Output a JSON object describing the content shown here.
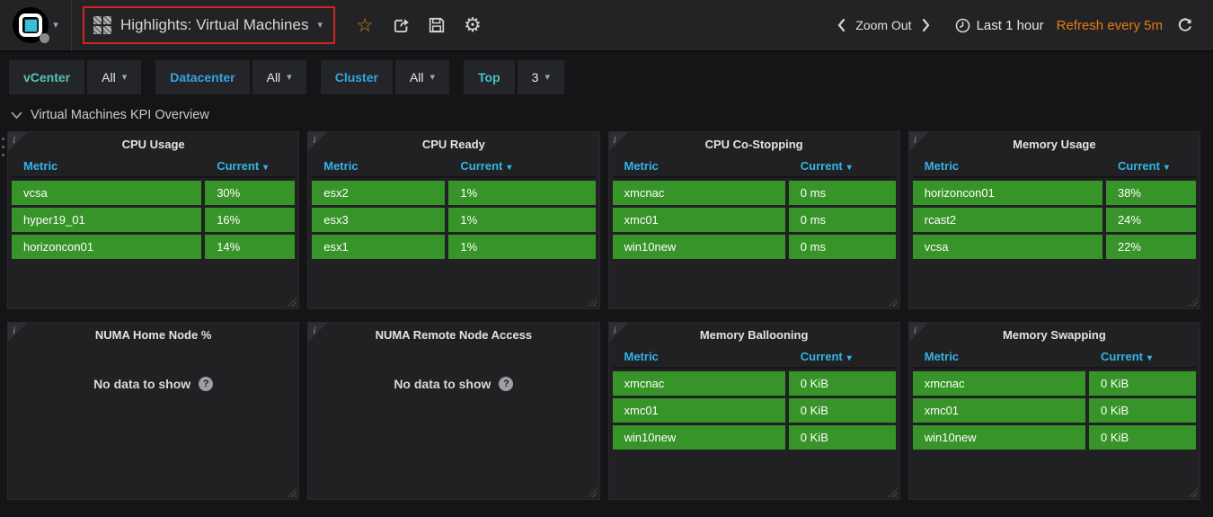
{
  "colors": {
    "page_bg": "#151517",
    "navbar_bg": "#232325",
    "panel_bg": "#212124",
    "box_bg": "#232528",
    "green": "#379428",
    "blue": "#33b5e5",
    "orange": "#e87a16",
    "star_orange": "#d5881c",
    "red": "#cf2522",
    "logo_cyan": "#3bbfd4",
    "text": "#d8d9da"
  },
  "navbar": {
    "title": "Highlights: Virtual Machines",
    "zoom_out_label": "Zoom Out",
    "time_range_label": "Last 1 hour",
    "refresh_label": "Refresh every 5m",
    "action_icons": [
      "star-icon",
      "share-icon",
      "save-icon",
      "settings-gear-icon"
    ]
  },
  "filters": [
    {
      "label": "vCenter",
      "value": "All",
      "label_color": "#54c3b6"
    },
    {
      "label": "Datacenter",
      "value": "All",
      "label_color": "#34a3e2"
    },
    {
      "label": "Cluster",
      "value": "All",
      "label_color": "#34a3e2"
    },
    {
      "label": "Top",
      "value": "3",
      "label_color": "#47c0cb"
    }
  ],
  "section": {
    "title": "Virtual Machines KPI Overview"
  },
  "table_header": {
    "metric": "Metric",
    "current": "Current"
  },
  "no_data_text": "No data to show",
  "panels": [
    {
      "title": "CPU Usage",
      "col_split": 67,
      "rows": [
        [
          "vcsa",
          "30%"
        ],
        [
          "hyper19_01",
          "16%"
        ],
        [
          "horizoncon01",
          "14%"
        ]
      ]
    },
    {
      "title": "CPU Ready",
      "col_split": 47,
      "rows": [
        [
          "esx2",
          "1%"
        ],
        [
          "esx3",
          "1%"
        ],
        [
          "esx1",
          "1%"
        ]
      ]
    },
    {
      "title": "CPU Co-Stopping",
      "col_split": 61,
      "rows": [
        [
          "xmcnac",
          "0 ms"
        ],
        [
          "xmc01",
          "0 ms"
        ],
        [
          "win10new",
          "0 ms"
        ]
      ]
    },
    {
      "title": "Memory Usage",
      "col_split": 67,
      "rows": [
        [
          "horizoncon01",
          "38%"
        ],
        [
          "rcast2",
          "24%"
        ],
        [
          "vcsa",
          "22%"
        ]
      ]
    },
    {
      "title": "NUMA Home Node %",
      "no_data": true
    },
    {
      "title": "NUMA Remote Node Access",
      "no_data": true
    },
    {
      "title": "Memory Ballooning",
      "col_split": 61,
      "rows": [
        [
          "xmcnac",
          "0 KiB"
        ],
        [
          "xmc01",
          "0 KiB"
        ],
        [
          "win10new",
          "0 KiB"
        ]
      ]
    },
    {
      "title": "Memory Swapping",
      "col_split": 61,
      "rows": [
        [
          "xmcnac",
          "0 KiB"
        ],
        [
          "xmc01",
          "0 KiB"
        ],
        [
          "win10new",
          "0 KiB"
        ]
      ]
    }
  ]
}
